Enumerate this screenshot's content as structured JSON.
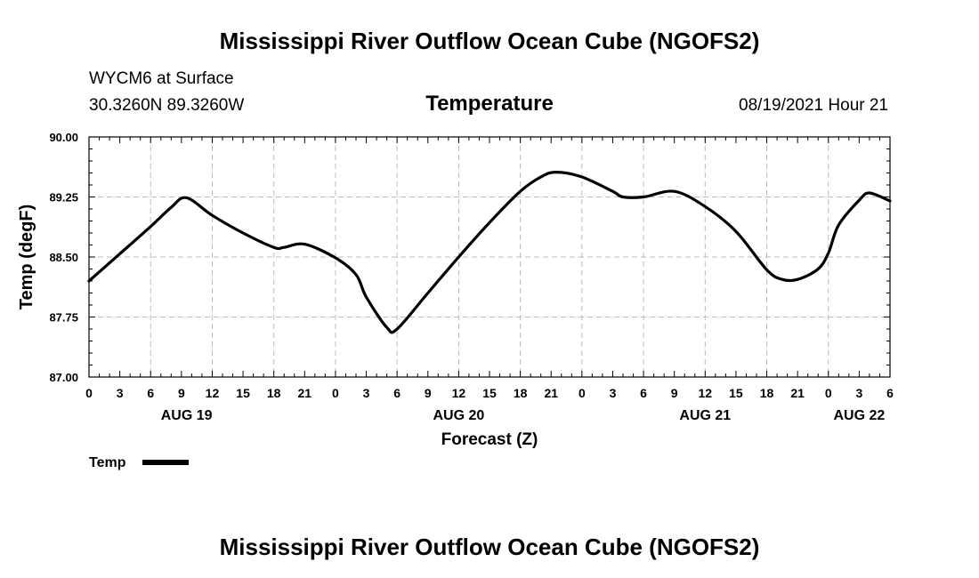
{
  "page": {
    "title_top": "Mississippi River Outflow Ocean Cube (NGOFS2)",
    "title_bottom": "Mississippi River Outflow Ocean Cube (NGOFS2)",
    "station": "WYCM6 at Surface",
    "coords": "30.3260N  89.3260W",
    "datetime": "08/19/2021 Hour 21"
  },
  "chart_data": {
    "type": "line",
    "title": "Temperature",
    "xlabel": "Forecast (Z)",
    "ylabel": "Temp (degF)",
    "ylim": [
      87.0,
      90.0
    ],
    "yticks": [
      "87.00",
      "87.75",
      "88.50",
      "89.25",
      "90.00"
    ],
    "xlim_hours": [
      0,
      78
    ],
    "xtick_labels": [
      "0",
      "3",
      "6",
      "9",
      "12",
      "15",
      "18",
      "21",
      "0",
      "3",
      "6",
      "9",
      "12",
      "15",
      "18",
      "21",
      "0",
      "3",
      "6",
      "9",
      "12",
      "15",
      "18",
      "21",
      "0",
      "3",
      "6"
    ],
    "day_labels": [
      {
        "label": "AUG 19",
        "hour": 9.5
      },
      {
        "label": "AUG 20",
        "hour": 36
      },
      {
        "label": "AUG 21",
        "hour": 60
      },
      {
        "label": "AUG 22",
        "hour": 75
      }
    ],
    "grid": true,
    "legend": {
      "label": "Temp",
      "placement": "bottom-left"
    },
    "series": [
      {
        "name": "Temp",
        "x": [
          0,
          3,
          6,
          8,
          9.5,
          12,
          15,
          18,
          19,
          21,
          24,
          26,
          27,
          29,
          30,
          33,
          36,
          39,
          42,
          44,
          45.5,
          48,
          51,
          52,
          54,
          57,
          60,
          63,
          66,
          67.5,
          69,
          71,
          72,
          73,
          75,
          76,
          78
        ],
        "values": [
          88.2,
          88.54,
          88.88,
          89.12,
          89.24,
          89.02,
          88.8,
          88.62,
          88.62,
          88.66,
          88.49,
          88.28,
          88.0,
          87.62,
          87.6,
          88.05,
          88.5,
          88.93,
          89.32,
          89.5,
          89.56,
          89.5,
          89.32,
          89.25,
          89.25,
          89.32,
          89.13,
          88.82,
          88.34,
          88.22,
          88.22,
          88.35,
          88.55,
          88.9,
          89.21,
          89.3,
          89.2
        ]
      }
    ]
  }
}
